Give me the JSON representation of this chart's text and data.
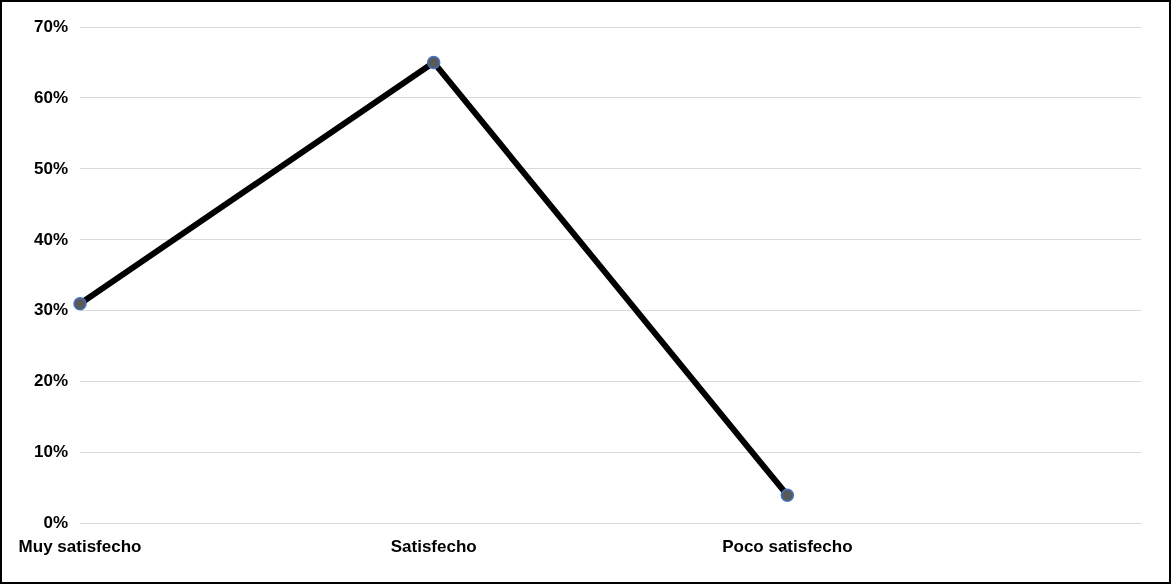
{
  "chart_data": {
    "type": "line",
    "categories": [
      "Muy satisfecho",
      "Satisfecho",
      "Poco satisfecho",
      null
    ],
    "series": [
      {
        "color": "#000000",
        "values": [
          31,
          65,
          4,
          null
        ]
      }
    ],
    "ylim": [
      0,
      70
    ],
    "yticks": [
      {
        "value": 0,
        "label": "0%"
      },
      {
        "value": 10,
        "label": "10%"
      },
      {
        "value": 20,
        "label": "20%"
      },
      {
        "value": 30,
        "label": "30%"
      },
      {
        "value": 40,
        "label": "40%"
      },
      {
        "value": 50,
        "label": "50%"
      },
      {
        "value": 60,
        "label": "60%"
      },
      {
        "value": 70,
        "label": "70%"
      }
    ],
    "grid": "y",
    "legend": false,
    "marker": "circle",
    "line_style": "solid"
  }
}
